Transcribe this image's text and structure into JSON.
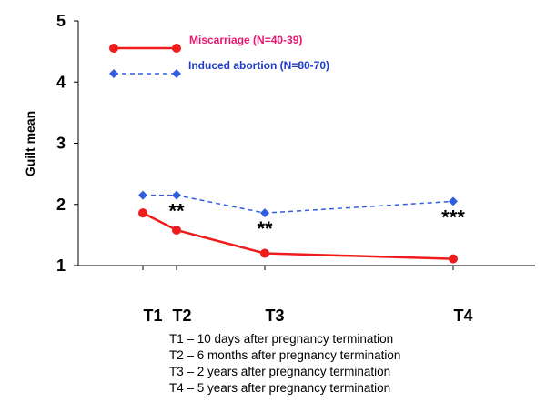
{
  "chart_data": {
    "type": "line",
    "xlabel": "",
    "ylabel": "Guilt mean",
    "ylim": [
      1,
      5
    ],
    "yticks": [
      1,
      2,
      3,
      4,
      5
    ],
    "categories": [
      "T1",
      "T2",
      "T3",
      "T4"
    ],
    "series": [
      {
        "name": "Miscarriage (N=40-39)",
        "color": "#ee1c1c",
        "legend_color": "#e6196e",
        "marker": "circle",
        "line_style": "solid",
        "values": [
          1.86,
          1.58,
          1.2,
          1.11
        ]
      },
      {
        "name": "Induced abortion (N=80-70)",
        "color": "#2f5fe0",
        "legend_color": "#1f3cc8",
        "marker": "diamond",
        "line_style": "dashed",
        "values": [
          2.15,
          2.15,
          1.86,
          2.05
        ]
      }
    ],
    "significance_marks": [
      {
        "category": "T2",
        "label": "**"
      },
      {
        "category": "T3",
        "label": "**"
      },
      {
        "category": "T4",
        "label": "***"
      }
    ],
    "legend_position": "top-left",
    "grid": false
  },
  "notes": [
    "T1 – 10 days after pregnancy termination",
    "T2 – 6 months after pregnancy termination",
    "T3 – 2 years after pregnancy termination",
    "T4 – 5 years after pregnancy termination"
  ]
}
